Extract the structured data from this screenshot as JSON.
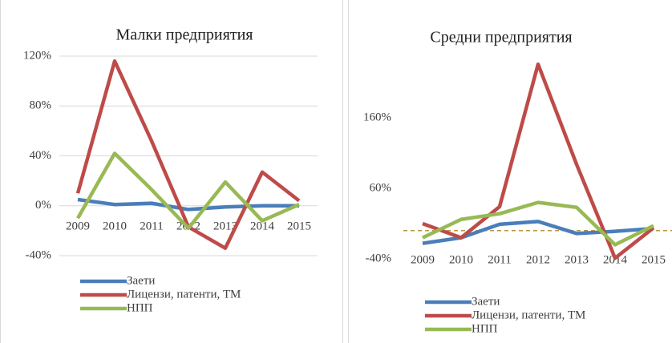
{
  "chart_data": [
    {
      "type": "line",
      "title": "Малки предприятия",
      "categories": [
        "2009",
        "2010",
        "2011",
        "2012",
        "2013",
        "2014",
        "2015"
      ],
      "ylim": [
        -40,
        120
      ],
      "yticks": [
        {
          "value": -40,
          "label": "-40%"
        },
        {
          "value": 0,
          "label": "0%"
        },
        {
          "value": 40,
          "label": "40%"
        },
        {
          "value": 80,
          "label": "80%"
        },
        {
          "value": 120,
          "label": "120%"
        }
      ],
      "grid": true,
      "series": [
        {
          "name": "Заети",
          "color": "#4a7ebb",
          "values": [
            5,
            1,
            2,
            -3,
            -1,
            0,
            0
          ]
        },
        {
          "name": "Лицензи, патенти, ТМ",
          "color": "#be4b48",
          "values": [
            10,
            116,
            52,
            -17,
            -34,
            27,
            4
          ]
        },
        {
          "name": "НПП",
          "color": "#98b954",
          "values": [
            -10,
            42,
            13,
            -18,
            19,
            -12,
            1
          ]
        }
      ]
    },
    {
      "type": "line",
      "title": "Средни предприятия",
      "categories": [
        "2009",
        "2010",
        "2011",
        "2012",
        "2013",
        "2014",
        "2015"
      ],
      "ylim": [
        -40,
        240
      ],
      "yticks": [
        {
          "value": -40,
          "label": "-40%"
        },
        {
          "value": 60,
          "label": "60%"
        },
        {
          "value": 160,
          "label": "160%"
        }
      ],
      "grid": false,
      "series": [
        {
          "name": "Заети",
          "color": "#4a7ebb",
          "values": [
            -18,
            -10,
            9,
            13,
            -4,
            -1,
            3
          ]
        },
        {
          "name": "Лицензи, патенти, ТМ",
          "color": "#be4b48",
          "values": [
            10,
            -10,
            34,
            236,
            94,
            -39,
            4
          ]
        },
        {
          "name": "НПП",
          "color": "#98b954",
          "values": [
            -10,
            16,
            24,
            40,
            33,
            -20,
            7
          ]
        }
      ]
    }
  ]
}
